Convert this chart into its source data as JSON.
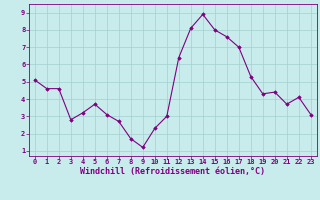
{
  "x": [
    0,
    1,
    2,
    3,
    4,
    5,
    6,
    7,
    8,
    9,
    10,
    11,
    12,
    13,
    14,
    15,
    16,
    17,
    18,
    19,
    20,
    21,
    22,
    23
  ],
  "y": [
    5.1,
    4.6,
    4.6,
    2.8,
    3.2,
    3.7,
    3.1,
    2.7,
    1.7,
    1.2,
    2.3,
    3.0,
    6.4,
    8.1,
    8.9,
    8.0,
    7.6,
    7.0,
    5.3,
    4.3,
    4.4,
    3.7,
    4.1,
    3.1
  ],
  "line_color": "#800080",
  "marker_color": "#800080",
  "bg_color": "#c8ecec",
  "grid_color": "#a0d0d0",
  "xlabel": "Windchill (Refroidissement éolien,°C)",
  "xlabel_color": "#800080",
  "xlim": [
    -0.5,
    23.5
  ],
  "ylim": [
    0.7,
    9.5
  ],
  "yticks": [
    1,
    2,
    3,
    4,
    5,
    6,
    7,
    8,
    9
  ],
  "xticks": [
    0,
    1,
    2,
    3,
    4,
    5,
    6,
    7,
    8,
    9,
    10,
    11,
    12,
    13,
    14,
    15,
    16,
    17,
    18,
    19,
    20,
    21,
    22,
    23
  ],
  "tick_color": "#800080",
  "tick_fontsize": 5.0,
  "xlabel_fontsize": 6.0
}
